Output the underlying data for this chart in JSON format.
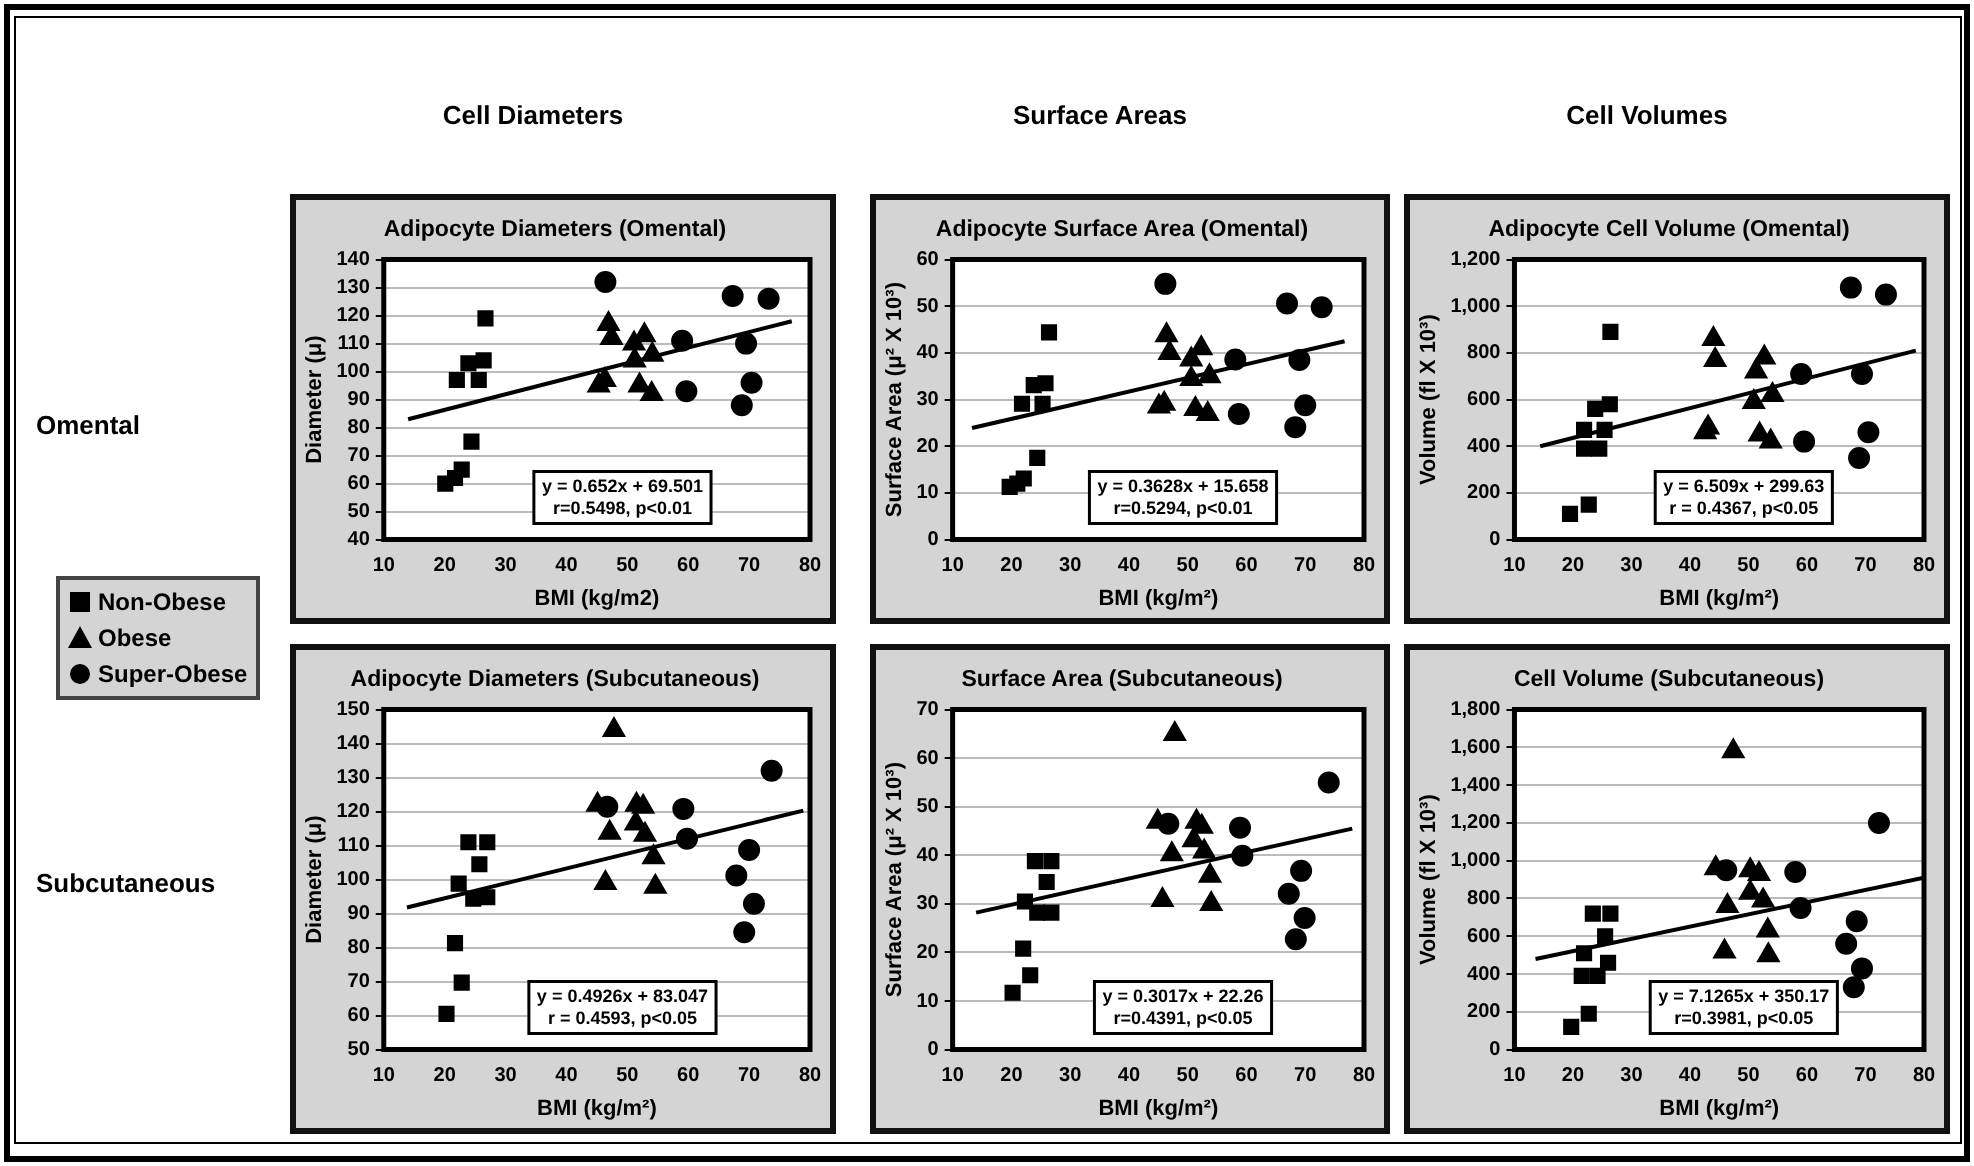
{
  "chart_data": [
    {
      "type": "scatter",
      "title": "Adipocyte Diameters (Omental)",
      "xlabel": "BMI (kg/m2)",
      "ylabel": "Diameter (μ)",
      "annotations": [
        "y = 0.652x + 69.501\nr=0.5498, p<0.01",
        "Cell Diameters",
        "Omental"
      ],
      "xlim": [
        10,
        80
      ],
      "xticks": [
        10,
        20,
        30,
        40,
        50,
        60,
        70,
        80
      ],
      "ylim": [
        40,
        140
      ],
      "yticks": [
        40,
        50,
        60,
        70,
        80,
        90,
        100,
        110,
        120,
        130,
        140
      ],
      "grid": "y",
      "legend": "left",
      "series": [
        {
          "name": "Non-Obese",
          "color": "#000000",
          "marker": "square",
          "x": [
            20.1,
            21.7,
            22.8,
            24.4,
            22,
            23.9,
            26.4,
            25.6,
            26.7
          ],
          "values": [
            60,
            62,
            65,
            75,
            97,
            103,
            104,
            97,
            119
          ]
        },
        {
          "name": "Obese",
          "color": "#000000",
          "marker": "triangle",
          "x": [
            46.9,
            47.4,
            45.3,
            46.3,
            51.1,
            52.8,
            51.2,
            54.1,
            52,
            54
          ],
          "values": [
            117,
            112,
            95,
            97,
            110,
            113,
            104,
            106,
            95,
            92
          ]
        },
        {
          "name": "Super-Obese",
          "color": "#000000",
          "marker": "circle",
          "x": [
            46.4,
            59,
            59.7,
            67.3,
            73.2,
            69.5,
            70.4,
            68.8
          ],
          "values": [
            132,
            111,
            93,
            127,
            126,
            110,
            96,
            88
          ]
        },
        {
          "type": "line",
          "color": "#000000",
          "marker": "none",
          "x": [
            14,
            77
          ],
          "values": [
            83,
            118
          ]
        }
      ]
    },
    {
      "type": "scatter",
      "title": "Adipocyte Surface Area (Omental)",
      "xlabel": "BMI (kg/m²)",
      "ylabel": "Surface Area (μ² X 10³)",
      "annotations": [
        "y = 0.3628x + 15.658\nr=0.5294, p<0.01",
        "Surface Areas"
      ],
      "xlim": [
        10,
        80
      ],
      "xticks": [
        10,
        20,
        30,
        40,
        50,
        60,
        70,
        80
      ],
      "ylim": [
        0,
        60
      ],
      "yticks": [
        0,
        10,
        20,
        30,
        40,
        50,
        60
      ],
      "grid": "y",
      "series": [
        {
          "color": "#000000",
          "marker": "square",
          "x": [
            19.7,
            21,
            22.1,
            24.4,
            21.8,
            23.8,
            25.8,
            25.3,
            26.4
          ],
          "values": [
            11.3,
            12,
            13.1,
            17.5,
            29.1,
            33.1,
            33.5,
            29.1,
            44.4
          ]
        },
        {
          "color": "#000000",
          "marker": "triangle",
          "x": [
            46.4,
            46.9,
            50.6,
            52.3,
            50.6,
            53.7,
            51.3,
            53.4,
            45.1,
            46
          ],
          "values": [
            43.8,
            40,
            38.6,
            41,
            34.4,
            35,
            28,
            26.9,
            28.5,
            29.1
          ]
        },
        {
          "color": "#000000",
          "marker": "circle",
          "x": [
            46.2,
            58.1,
            58.7,
            66.9,
            72.8,
            69,
            70,
            68.3
          ],
          "values": [
            54.8,
            38.6,
            26.9,
            50.6,
            49.8,
            38.5,
            28.8,
            24.1
          ]
        },
        {
          "type": "line",
          "color": "#000000",
          "marker": "none",
          "x": [
            13.3,
            76.7
          ],
          "values": [
            23.9,
            42.5
          ]
        }
      ]
    },
    {
      "type": "scatter",
      "title": "Adipocyte Cell Volume (Omental)",
      "xlabel": "BMI (kg/m²)",
      "ylabel": "Volume (fl X 10³)",
      "annotations": [
        "y = 6.509x + 299.63\nr = 0.4367, p<0.05",
        "Cell Volumes"
      ],
      "xlim": [
        10,
        80
      ],
      "xticks": [
        10,
        20,
        30,
        40,
        50,
        60,
        70,
        80
      ],
      "ylim": [
        0,
        1200
      ],
      "yticks": [
        0,
        200,
        400,
        600,
        800,
        {
          "value": 1000,
          "label": "1,000"
        },
        {
          "value": 1200,
          "label": "1,200"
        }
      ],
      "grid": "y",
      "series": [
        {
          "color": "#000000",
          "marker": "square",
          "x": [
            19.5,
            22.7,
            21.9,
            24.5,
            21.9,
            25.4,
            23.8,
            26.3,
            26.4
          ],
          "values": [
            110,
            150,
            390,
            390,
            470,
            470,
            560,
            580,
            890
          ]
        },
        {
          "color": "#000000",
          "marker": "triangle",
          "x": [
            44,
            44.3,
            42.6,
            43.1,
            51.3,
            52.7,
            50.9,
            54.1,
            51.9,
            53.8
          ],
          "values": [
            860,
            770,
            460,
            480,
            720,
            780,
            590,
            620,
            450,
            420
          ]
        },
        {
          "color": "#000000",
          "marker": "circle",
          "x": [
            67.5,
            73.5,
            59,
            59.5,
            69.4,
            70.5,
            68.9
          ],
          "values": [
            1080,
            1050,
            710,
            420,
            710,
            460,
            350
          ]
        },
        {
          "type": "line",
          "color": "#000000",
          "marker": "none",
          "x": [
            14.4,
            78.6
          ],
          "values": [
            400,
            810
          ]
        }
      ]
    },
    {
      "type": "scatter",
      "title": "Adipocyte Diameters (Subcutaneous)",
      "xlabel": "BMI (kg/m²)",
      "ylabel": "Diameter (μ)",
      "annotations": [
        "y = 0.4926x + 83.047\nr = 0.4593, p<0.05",
        "Subcutaneous"
      ],
      "xlim": [
        10,
        80
      ],
      "xticks": [
        10,
        20,
        30,
        40,
        50,
        60,
        70,
        80
      ],
      "ylim": [
        50,
        150
      ],
      "yticks": [
        50,
        60,
        70,
        80,
        90,
        100,
        110,
        120,
        130,
        140,
        150
      ],
      "grid": "y",
      "series": [
        {
          "color": "#000000",
          "marker": "square",
          "x": [
            20.3,
            22.8,
            21.7,
            22.3,
            24.7,
            27,
            23.9,
            27,
            25.7
          ],
          "values": [
            60.5,
            69.7,
            81.3,
            98.8,
            94.4,
            94.8,
            111,
            111,
            104.5
          ]
        },
        {
          "color": "#000000",
          "marker": "triangle",
          "x": [
            47.8,
            45.1,
            47.1,
            46.4,
            51.5,
            52.6,
            51.4,
            52.9,
            54.3,
            54.6
          ],
          "values": [
            144,
            122,
            113.8,
            99,
            122,
            121.4,
            116.5,
            113.2,
            106.6,
            97.9
          ]
        },
        {
          "color": "#000000",
          "marker": "circle",
          "x": [
            46.7,
            59.2,
            59.8,
            67.9,
            70,
            70.8,
            69.2,
            73.7
          ],
          "values": [
            121.4,
            120.8,
            112,
            101.2,
            108.7,
            92.9,
            84.5,
            132
          ]
        },
        {
          "type": "line",
          "color": "#000000",
          "marker": "none",
          "x": [
            13.8,
            78.9
          ],
          "values": [
            91.8,
            120.3
          ]
        }
      ]
    },
    {
      "type": "scatter",
      "title": "Surface Area (Subcutaneous)",
      "xlabel": "BMI (kg/m²)",
      "ylabel": "Surface Area (μ² X 10³)",
      "annotations": [
        "y = 0.3017x + 22.26\nr=0.4391, p<0.05"
      ],
      "xlim": [
        10,
        80
      ],
      "xticks": [
        10,
        20,
        30,
        40,
        50,
        60,
        70,
        80
      ],
      "ylim": [
        0,
        70
      ],
      "yticks": [
        0,
        10,
        20,
        30,
        40,
        50,
        60,
        70
      ],
      "grid": "y",
      "series": [
        {
          "color": "#000000",
          "marker": "square",
          "x": [
            20.2,
            23.2,
            22,
            22.3,
            24,
            26.8,
            26,
            24.4,
            26.8
          ],
          "values": [
            11.7,
            15.3,
            20.8,
            30.5,
            38.8,
            38.8,
            34.5,
            28.2,
            28.2
          ]
        },
        {
          "color": "#000000",
          "marker": "triangle",
          "x": [
            47.8,
            44.9,
            47.3,
            45.7,
            51.5,
            52.4,
            51,
            52.8,
            53.8,
            54
          ],
          "values": [
            65,
            46.9,
            40.2,
            30.8,
            46.9,
            45.9,
            43.1,
            40.8,
            35.8,
            30
          ]
        },
        {
          "color": "#000000",
          "marker": "circle",
          "x": [
            46.7,
            58.9,
            59.3,
            67.2,
            69.3,
            69.9,
            68.4,
            74
          ],
          "values": [
            46.5,
            45.7,
            39.9,
            32.1,
            36.8,
            27.1,
            22.7,
            55
          ]
        },
        {
          "type": "line",
          "color": "#000000",
          "marker": "none",
          "x": [
            14,
            78
          ],
          "values": [
            28.2,
            45.5
          ]
        }
      ]
    },
    {
      "type": "scatter",
      "title": "Cell Volume (Subcutaneous)",
      "xlabel": "BMI (kg/m²)",
      "ylabel": "Volume (fl X 10³)",
      "annotations": [
        "y = 7.1265x + 350.17\nr=0.3981, p<0.05"
      ],
      "xlim": [
        10,
        80
      ],
      "xticks": [
        10,
        20,
        30,
        40,
        50,
        60,
        70,
        80
      ],
      "ylim": [
        0,
        1800
      ],
      "yticks": [
        0,
        200,
        400,
        600,
        800,
        {
          "value": 1000,
          "label": "1,000"
        },
        {
          "value": 1200,
          "label": "1,200"
        },
        {
          "value": 1400,
          "label": "1,400"
        },
        {
          "value": 1600,
          "label": "1,600"
        },
        {
          "value": 1800,
          "label": "1,800"
        }
      ],
      "grid": "y",
      "series": [
        {
          "color": "#000000",
          "marker": "square",
          "x": [
            19.7,
            22.7,
            21.5,
            24.2,
            21.9,
            23.4,
            26.4,
            25.5,
            26
          ],
          "values": [
            120,
            190,
            390,
            390,
            510,
            720,
            720,
            600,
            460
          ]
        },
        {
          "color": "#000000",
          "marker": "triangle",
          "x": [
            47.4,
            44.4,
            46.4,
            45.9,
            50.3,
            51.8,
            50.3,
            52.5,
            53.3,
            53.4
          ],
          "values": [
            1580,
            960,
            760,
            520,
            950,
            930,
            830,
            790,
            630,
            500
          ]
        },
        {
          "color": "#000000",
          "marker": "circle",
          "x": [
            46.2,
            58,
            58.9,
            66.7,
            68.5,
            69.4,
            68,
            72.3
          ],
          "values": [
            950,
            940,
            750,
            560,
            680,
            430,
            330,
            1200
          ]
        },
        {
          "type": "line",
          "color": "#000000",
          "marker": "none",
          "x": [
            13.6,
            80
          ],
          "values": [
            480,
            910
          ]
        }
      ]
    }
  ]
}
